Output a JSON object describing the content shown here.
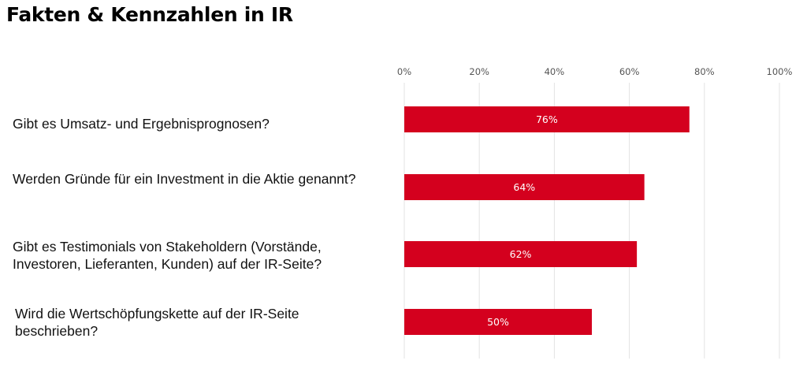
{
  "title": "Fakten & Kennzahlen in IR",
  "chart_data": {
    "type": "bar",
    "orientation": "horizontal",
    "categories": [
      "Gibt es Umsatz- und Ergebnisprognosen?",
      "Werden Gründe für ein Investment in die Aktie genannt?",
      "Gibt es Testimonials von Stakeholdern (Vorstände, Investoren, Lieferanten, Kunden) auf der IR-Seite?",
      "Wird die Wertschöpfungskette auf der IR-Seite beschrieben?"
    ],
    "values": [
      76,
      64,
      62,
      50
    ],
    "data_labels": [
      "76%",
      "64%",
      "62%",
      "50%"
    ],
    "x_ticks": [
      "0%",
      "20%",
      "40%",
      "60%",
      "80%",
      "100%"
    ],
    "xlim": [
      0,
      100
    ],
    "xaxis_position": "top",
    "grid": true,
    "bar_color": "#d4001e",
    "title": "Fakten & Kennzahlen in IR",
    "xlabel": "",
    "ylabel": ""
  }
}
